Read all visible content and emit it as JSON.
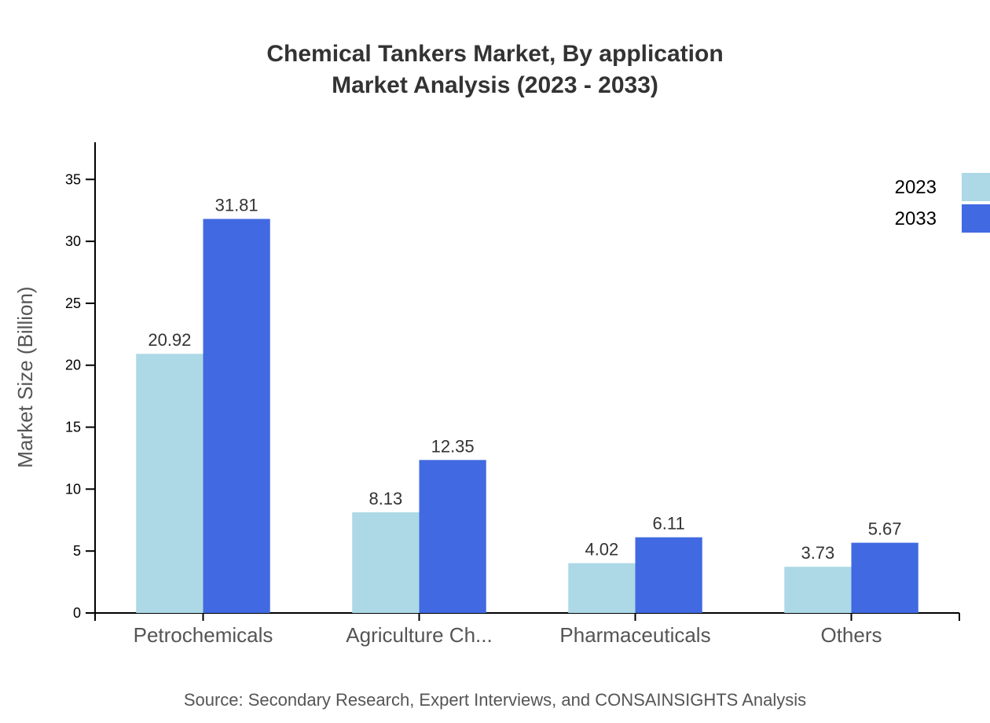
{
  "chart_data": {
    "type": "bar",
    "title": "Chemical Tankers Market, By application",
    "subtitle": "Market Analysis (2023 - 2033)",
    "xlabel": "",
    "ylabel": "Market Size (Billion)",
    "ylim": [
      0,
      38
    ],
    "yticks": [
      0,
      5,
      10,
      15,
      20,
      25,
      30,
      35
    ],
    "categories": [
      "Petrochemicals",
      "Agriculture Ch...",
      "Pharmaceuticals",
      "Others"
    ],
    "series": [
      {
        "name": "2023",
        "color": "#add8e6",
        "values": [
          20.92,
          8.13,
          4.02,
          3.73
        ]
      },
      {
        "name": "2033",
        "color": "#4169e1",
        "values": [
          31.81,
          12.35,
          6.11,
          5.67
        ]
      }
    ],
    "legend_position": "top-right",
    "grid": false,
    "source": "Source: Secondary Research, Expert Interviews, and CONSAINSIGHTS Analysis"
  }
}
